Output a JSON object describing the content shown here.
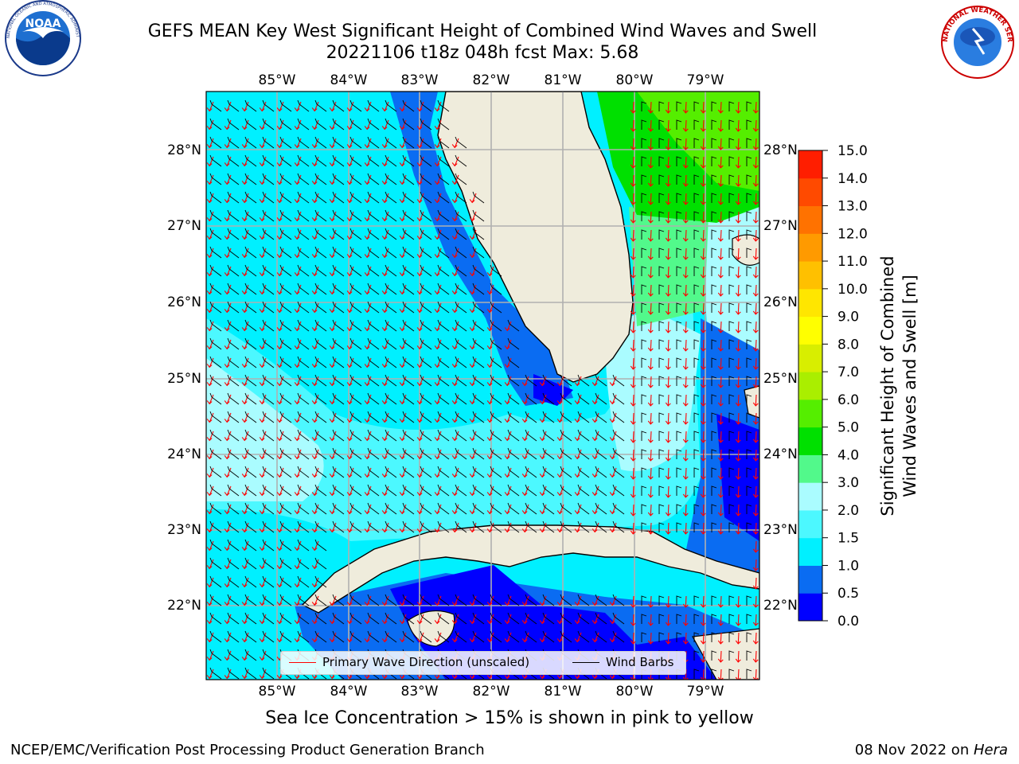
{
  "header": {
    "title_line1": "GEFS MEAN Key West Significant Height of Combined Wind Waves and Swell",
    "title_line2": "20221106 t18z 048h fcst   Max: 5.68"
  },
  "logos": {
    "left": {
      "text": "NOAA",
      "ring_text": "NATIONAL OCEANIC AND ATMOSPHERIC ADMINISTRATION · U.S. DEPARTMENT OF COMMERCE"
    },
    "right": {
      "ring_text": "NATIONAL WEATHER SERVICE"
    }
  },
  "map": {
    "lon_labels": [
      "85°W",
      "84°W",
      "83°W",
      "82°W",
      "81°W",
      "80°W",
      "79°W"
    ],
    "lat_labels": [
      "28°N",
      "27°N",
      "26°N",
      "25°N",
      "24°N",
      "23°N",
      "22°N"
    ],
    "land_color": "#efecdc",
    "grid_color": "#b0b0b0",
    "wave_arrow_color": "#ff0000",
    "wind_barb_color": "#000000"
  },
  "legend": {
    "primary_wave": "Primary Wave Direction (unscaled)",
    "wind_barbs": "Wind Barbs"
  },
  "colorbar": {
    "title_line1": "Significant Height of Combined",
    "title_line2": "Wind Waves and Swell [m]",
    "ticks": [
      "0.0",
      "0.5",
      "1.0",
      "1.5",
      "2.0",
      "3.0",
      "4.0",
      "5.0",
      "6.0",
      "7.0",
      "8.0",
      "9.0",
      "10.0",
      "11.0",
      "12.0",
      "13.0",
      "14.0",
      "15.0"
    ],
    "colors": [
      "#0000ff",
      "#0a6cf2",
      "#00f0ff",
      "#4cf8ff",
      "#aafcff",
      "#52f98b",
      "#00e000",
      "#55ee00",
      "#aaee00",
      "#d8ee00",
      "#ffff00",
      "#ffe600",
      "#ffc000",
      "#ff9a00",
      "#ff7200",
      "#ff4a00",
      "#ff1e00"
    ]
  },
  "footer": {
    "note": "Sea Ice Concentration > 15% is shown in pink to yellow",
    "left": "NCEP/EMC/Verification Post Processing Product Generation Branch",
    "right_prefix": "08 Nov 2022 on ",
    "right_host": "Hera"
  }
}
